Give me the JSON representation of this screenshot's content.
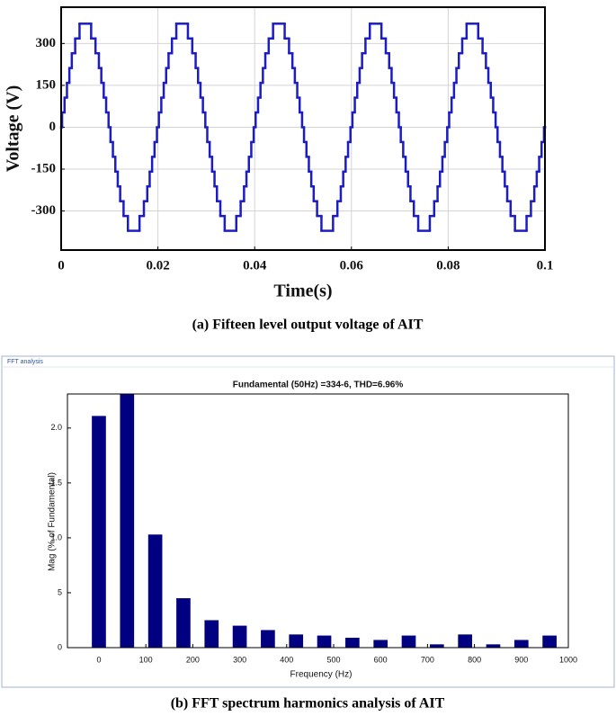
{
  "chart_data": [
    {
      "type": "line",
      "step": "post",
      "xlabel": "Time(s)",
      "ylabel": "Voltage (V)",
      "caption": "(a) Fifteen level output voltage of AIT",
      "xlim": [
        0,
        0.1
      ],
      "xticks": [
        0,
        0.02,
        0.04,
        0.06,
        0.08,
        0.1
      ],
      "ylim": [
        -440,
        430
      ],
      "yticks": [
        -300,
        -150,
        0,
        150,
        300
      ],
      "grid": true,
      "series": [
        {
          "name": "Voltage",
          "color": "#1c1cc4",
          "x": [
            0,
            0.0002,
            0.0007,
            0.0012,
            0.0017,
            0.0022,
            0.0029,
            0.0038,
            0.0062,
            0.0071,
            0.0078,
            0.0083,
            0.0088,
            0.0093,
            0.0098,
            0.0102,
            0.0107,
            0.0112,
            0.0117,
            0.0122,
            0.0129,
            0.0138,
            0.0162,
            0.0171,
            0.0178,
            0.0183,
            0.0188,
            0.0193,
            0.0198,
            0.0202,
            0.0207,
            0.0212,
            0.0217,
            0.0222,
            0.0229,
            0.0238,
            0.0262,
            0.0271,
            0.0278,
            0.0283,
            0.0288,
            0.0293,
            0.0298,
            0.0302,
            0.0307,
            0.0312,
            0.0317,
            0.0322,
            0.0329,
            0.0338,
            0.0362,
            0.0371,
            0.0378,
            0.0383,
            0.0388,
            0.0393,
            0.0398,
            0.0402,
            0.0407,
            0.0412,
            0.0417,
            0.0422,
            0.0429,
            0.0438,
            0.0462,
            0.0471,
            0.0478,
            0.0483,
            0.0488,
            0.0493,
            0.0498,
            0.0502,
            0.0507,
            0.0512,
            0.0517,
            0.0522,
            0.0529,
            0.0538,
            0.0562,
            0.0571,
            0.0578,
            0.0583,
            0.0588,
            0.0593,
            0.0598,
            0.0602,
            0.0607,
            0.0612,
            0.0617,
            0.0622,
            0.0629,
            0.0638,
            0.0662,
            0.0671,
            0.0678,
            0.0683,
            0.0688,
            0.0693,
            0.0698,
            0.0702,
            0.0707,
            0.0712,
            0.0717,
            0.0722,
            0.0729,
            0.0738,
            0.0762,
            0.0771,
            0.0778,
            0.0783,
            0.0788,
            0.0793,
            0.0798,
            0.0802,
            0.0807,
            0.0812,
            0.0817,
            0.0822,
            0.0829,
            0.0838,
            0.0862,
            0.0871,
            0.0878,
            0.0883,
            0.0888,
            0.0893,
            0.0898,
            0.0902,
            0.0907,
            0.0912,
            0.0917,
            0.0922,
            0.0929,
            0.0938,
            0.0962,
            0.0971,
            0.0978,
            0.0983,
            0.0988,
            0.0993,
            0.0998,
            0.1
          ],
          "values": [
            0,
            53,
            106,
            159,
            212,
            265,
            318,
            371,
            318,
            265,
            212,
            159,
            106,
            53,
            0,
            -53,
            -106,
            -159,
            -212,
            -265,
            -318,
            -371,
            -318,
            -265,
            -212,
            -159,
            -106,
            -53,
            0,
            53,
            106,
            159,
            212,
            265,
            318,
            371,
            318,
            265,
            212,
            159,
            106,
            53,
            0,
            -53,
            -106,
            -159,
            -212,
            -265,
            -318,
            -371,
            -318,
            -265,
            -212,
            -159,
            -106,
            -53,
            0,
            53,
            106,
            159,
            212,
            265,
            318,
            371,
            318,
            265,
            212,
            159,
            106,
            53,
            0,
            -53,
            -106,
            -159,
            -212,
            -265,
            -318,
            -371,
            -318,
            -265,
            -212,
            -159,
            -106,
            -53,
            0,
            53,
            106,
            159,
            212,
            265,
            318,
            371,
            318,
            265,
            212,
            159,
            106,
            53,
            0,
            -53,
            -106,
            -159,
            -212,
            -265,
            -318,
            -371,
            -318,
            -265,
            -212,
            -159,
            -106,
            -53,
            0,
            53,
            106,
            159,
            212,
            265,
            318,
            371,
            318,
            265,
            212,
            159,
            106,
            53,
            0,
            -53,
            -106,
            -159,
            -212,
            -265,
            -318,
            -371,
            -318,
            -265,
            -212,
            -159,
            -106,
            -53,
            0,
            0
          ]
        }
      ]
    },
    {
      "type": "bar",
      "window_title": "FFT analysis",
      "title": "Fundamental (50Hz) =334-6,  THD=6.96%",
      "xlabel": "Frequency (Hz)",
      "ylabel": "Mag (% of Fundamental)",
      "caption": "(b) FFT spectrum harmonics analysis of AIT",
      "xlim": [
        -67,
        1000
      ],
      "xticks": [
        0,
        100,
        200,
        300,
        400,
        500,
        600,
        700,
        800,
        900,
        1000
      ],
      "ylim": [
        0,
        2.31
      ],
      "yticks": [
        0,
        {
          "value": 0.5,
          "label": "5"
        },
        {
          "value": 1,
          "label": "1.0"
        },
        1.5,
        {
          "value": 2,
          "label": "2.0"
        }
      ],
      "color": "#000080",
      "x": [
        0,
        60,
        120,
        180,
        240,
        300,
        360,
        420,
        480,
        540,
        600,
        660,
        720,
        780,
        840,
        900,
        960
      ],
      "values": [
        2.11,
        2.31,
        1.03,
        0.45,
        0.25,
        0.2,
        0.16,
        0.12,
        0.11,
        0.09,
        0.07,
        0.11,
        0.03,
        0.12,
        0.03,
        0.07,
        0.11
      ]
    }
  ]
}
